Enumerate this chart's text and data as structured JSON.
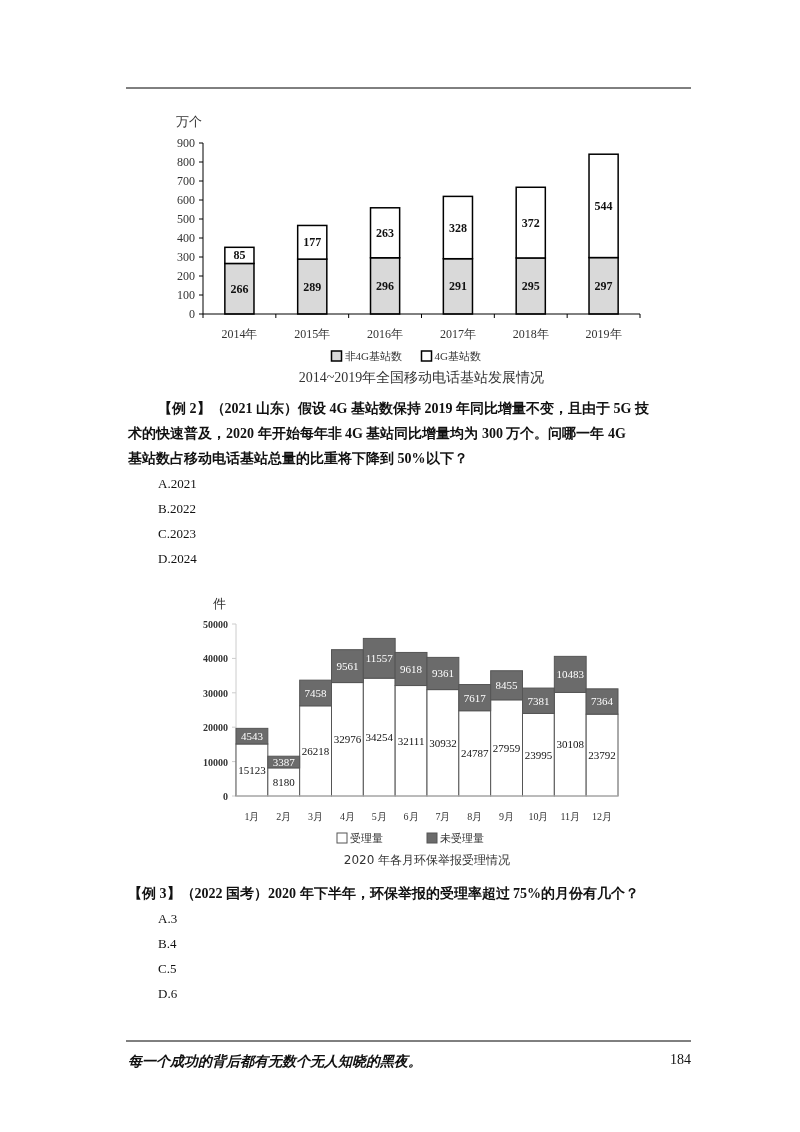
{
  "chart_data": [
    {
      "type": "bar",
      "title": "2014~2019年全国移动电话基站发展情况",
      "ylabel": "万个",
      "categories": [
        "2014年",
        "2015年",
        "2016年",
        "2017年",
        "2018年",
        "2019年"
      ],
      "stacked": true,
      "series": [
        {
          "name": "非4G基站数",
          "color": "#d9d9d9",
          "values": [
            266,
            289,
            296,
            291,
            295,
            297
          ]
        },
        {
          "name": "4G基站数",
          "color": "#ffffff",
          "values": [
            85,
            177,
            263,
            328,
            372,
            544
          ]
        }
      ],
      "ylim": [
        0,
        900
      ],
      "yticks": [
        0,
        100,
        200,
        300,
        400,
        500,
        600,
        700,
        800,
        900
      ],
      "data_labels": true,
      "legend": "bottom",
      "annotations": [
        "【例 2】（2021 山东）假设 4G 基站数保持 2019 年同比增量不变，且由于 5G 技术的快速普及，2020 年开始每年非 4G 基站同比增量均为 300 万个。问哪一年 4G 基站数占移动电话基站总量的比重将下降到 50%以下？",
        "A.2021",
        "B.2022",
        "C.2023",
        "D.2024"
      ]
    },
    {
      "type": "bar",
      "title": "2020 年各月环保举报受理情况",
      "ylabel": "件",
      "categories": [
        "1月",
        "2月",
        "3月",
        "4月",
        "5月",
        "6月",
        "7月",
        "8月",
        "9月",
        "10月",
        "11月",
        "12月"
      ],
      "stacked": true,
      "series": [
        {
          "name": "受理量",
          "color": "#ffffff",
          "values": [
            15123,
            8180,
            26218,
            32976,
            34254,
            32111,
            30932,
            24787,
            27959,
            23995,
            30108,
            23792
          ]
        },
        {
          "name": "未受理量",
          "color": "#6b6b6b",
          "values": [
            4543,
            3387,
            7458,
            9561,
            11557,
            9618,
            9361,
            7617,
            8455,
            7381,
            10483,
            7364
          ]
        }
      ],
      "ylim": [
        0,
        50000
      ],
      "yticks": [
        0,
        10000,
        20000,
        30000,
        40000,
        50000
      ],
      "data_labels": true,
      "legend": "bottom",
      "annotations": [
        "【例 3】（2022 国考）2020 年下半年，环保举报的受理率超过 75%的月份有几个？",
        "A.3",
        "B.4",
        "C.5",
        "D.6",
        "每一个成功的背后都有无数个无人知晓的黑夜。",
        "184"
      ]
    }
  ]
}
